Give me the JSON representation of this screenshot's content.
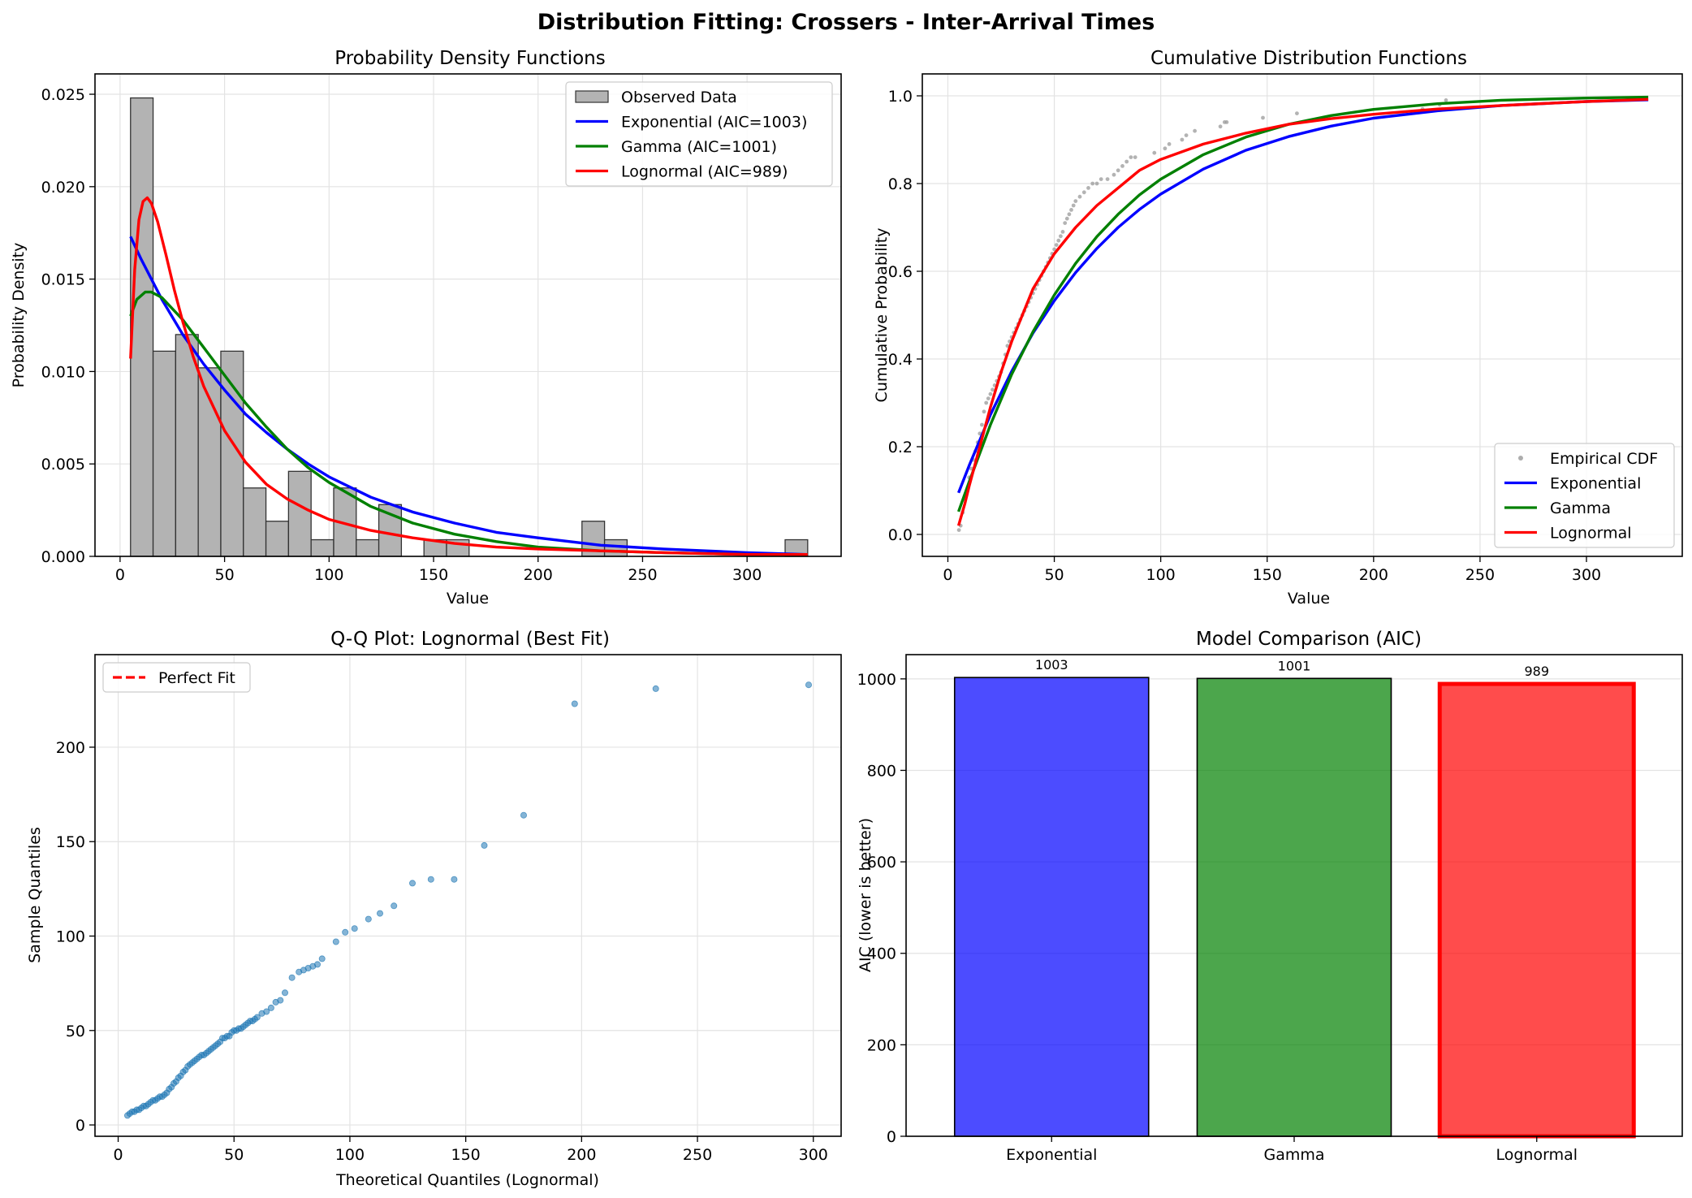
{
  "figure": {
    "title": "Distribution Fitting: Crossers - Inter-Arrival Times"
  },
  "panels": {
    "pdf": {
      "title": "Probability Density Functions",
      "xlabel": "Value",
      "ylabel": "Probability Density",
      "xlim": [
        -12,
        345
      ],
      "ylim": [
        0,
        0.0261
      ],
      "xticks": [
        0,
        50,
        100,
        150,
        200,
        250,
        300
      ],
      "xtick_labels": [
        "0",
        "50",
        "100",
        "150",
        "200",
        "250",
        "300"
      ],
      "yticks": [
        0,
        0.005,
        0.01,
        0.015,
        0.02,
        0.025
      ],
      "ytick_labels": [
        "0.000",
        "0.005",
        "0.010",
        "0.015",
        "0.020",
        "0.025"
      ],
      "legend_position": "top-right"
    },
    "cdf": {
      "title": "Cumulative Distribution Functions",
      "xlabel": "Value",
      "ylabel": "Cumulative Probability",
      "xlim": [
        -12,
        345
      ],
      "ylim": [
        -0.05,
        1.05
      ],
      "xticks": [
        0,
        50,
        100,
        150,
        200,
        250,
        300
      ],
      "xtick_labels": [
        "0",
        "50",
        "100",
        "150",
        "200",
        "250",
        "300"
      ],
      "yticks": [
        0,
        0.2,
        0.4,
        0.6,
        0.8,
        1.0
      ],
      "ytick_labels": [
        "0.0",
        "0.2",
        "0.4",
        "0.6",
        "0.8",
        "1.0"
      ],
      "legend_position": "bottom-right"
    },
    "qq": {
      "title": "Q-Q Plot: Lognormal (Best Fit)",
      "xlabel": "Theoretical Quantiles (Lognormal)",
      "ylabel": "Sample Quantiles",
      "xlim": [
        -10,
        312
      ],
      "ylim": [
        -6,
        249
      ],
      "xticks": [
        0,
        50,
        100,
        150,
        200,
        250,
        300
      ],
      "xtick_labels": [
        "0",
        "50",
        "100",
        "150",
        "200",
        "250",
        "300"
      ],
      "yticks": [
        0,
        50,
        100,
        150,
        200
      ],
      "ytick_labels": [
        "0",
        "50",
        "100",
        "150",
        "200"
      ],
      "legend_position": "top-left"
    },
    "aic": {
      "title": "Model Comparison (AIC)",
      "xlabel": "",
      "ylabel": "AIC (lower is better)",
      "ylim": [
        0,
        1053
      ],
      "yticks": [
        0,
        200,
        400,
        600,
        800,
        1000
      ],
      "ytick_labels": [
        "0",
        "200",
        "400",
        "600",
        "800",
        "1000"
      ]
    }
  },
  "chart_data": [
    {
      "type": "bar",
      "subtype": "histogram-with-fitted-curves",
      "title": "Probability Density Functions",
      "xlabel": "Value",
      "ylabel": "Probability Density",
      "xlim": [
        -12,
        345
      ],
      "ylim": [
        0,
        0.0261
      ],
      "grid": true,
      "legend": "top-right",
      "histogram": {
        "name": "Observed Data",
        "color": "#b3b3b3",
        "bin_edges": [
          5,
          15.8,
          26.6,
          37.4,
          48.2,
          59,
          69.8,
          80.6,
          91.4,
          102.2,
          113,
          123.8,
          134.6,
          145.4,
          156.2,
          167,
          177.8,
          188.6,
          199.4,
          210.2,
          221,
          231.8,
          242.6,
          253.4,
          264.2,
          275,
          285.8,
          296.6,
          307.4,
          318.2,
          329
        ],
        "densities": [
          0.0248,
          0.0111,
          0.012,
          0.0102,
          0.0111,
          0.0037,
          0.0019,
          0.0046,
          0.0009,
          0.0037,
          0.0009,
          0.0028,
          0,
          0.0009,
          0.0009,
          0,
          0,
          0,
          0,
          0,
          0.0019,
          0.0009,
          0,
          0,
          0,
          0,
          0,
          0,
          0,
          0.0009
        ]
      },
      "series": [
        {
          "name": "Exponential (AIC=1003)",
          "color": "#0000ff",
          "x": [
            5,
            10,
            20,
            30,
            40,
            50,
            60,
            70,
            80,
            90,
            100,
            120,
            140,
            160,
            180,
            200,
            230,
            260,
            300,
            329
          ],
          "y": [
            0.0173,
            0.0161,
            0.0139,
            0.012,
            0.0104,
            0.009,
            0.0077,
            0.0067,
            0.0058,
            0.005,
            0.0043,
            0.0032,
            0.0024,
            0.0018,
            0.0013,
            0.001,
            0.0006,
            0.0004,
            0.0002,
            0.0001
          ]
        },
        {
          "name": "Gamma (AIC=1001)",
          "color": "#008000",
          "x": [
            5,
            8,
            12,
            15,
            20,
            30,
            40,
            50,
            60,
            70,
            80,
            90,
            100,
            120,
            140,
            160,
            180,
            200,
            230,
            260,
            300,
            329
          ],
          "y": [
            0.013,
            0.0139,
            0.0143,
            0.0143,
            0.014,
            0.0128,
            0.0113,
            0.0098,
            0.0083,
            0.007,
            0.0058,
            0.0048,
            0.004,
            0.0027,
            0.0018,
            0.0012,
            0.0008,
            0.0005,
            0.0003,
            0.0002,
            0.0001,
            0.0001
          ]
        },
        {
          "name": "Lognormal (AIC=989)",
          "color": "#ff0000",
          "x": [
            5,
            7,
            9,
            11,
            13,
            15,
            18,
            22,
            26,
            30,
            35,
            40,
            50,
            60,
            70,
            80,
            90,
            100,
            120,
            140,
            160,
            180,
            200,
            230,
            260,
            300,
            329
          ],
          "y": [
            0.0107,
            0.0155,
            0.0182,
            0.0192,
            0.0194,
            0.0191,
            0.0181,
            0.0163,
            0.0144,
            0.0127,
            0.0108,
            0.0092,
            0.0068,
            0.0051,
            0.0039,
            0.0031,
            0.0025,
            0.002,
            0.0014,
            0.001,
            0.0007,
            0.0005,
            0.0004,
            0.0003,
            0.0002,
            0.0001,
            0.0001
          ]
        }
      ]
    },
    {
      "type": "line",
      "title": "Cumulative Distribution Functions",
      "xlabel": "Value",
      "ylabel": "Cumulative Probability",
      "xlim": [
        -12,
        345
      ],
      "ylim": [
        -0.05,
        1.05
      ],
      "grid": true,
      "legend": "bottom-right",
      "scatter": {
        "name": "Empirical CDF",
        "color": "#999999",
        "x": [
          5.2,
          6,
          7,
          8,
          9,
          10,
          11,
          12,
          13,
          14,
          15,
          16,
          17,
          18,
          19,
          20,
          21,
          22,
          23,
          24,
          25,
          26,
          27,
          28,
          29,
          30,
          31,
          32,
          33,
          34,
          35,
          36,
          37,
          38,
          39,
          40,
          41,
          42,
          43,
          44,
          45,
          46,
          47,
          48,
          49,
          50,
          51,
          52,
          53,
          54,
          55,
          56,
          57,
          58,
          59,
          60,
          62,
          64,
          66,
          68,
          70,
          72,
          75,
          78,
          80,
          82,
          84,
          86,
          88,
          97,
          102,
          104,
          110,
          112,
          116,
          128,
          130,
          131,
          148,
          164,
          223,
          231,
          234
        ],
        "y": [
          0.01,
          0.02,
          0.05,
          0.08,
          0.1,
          0.13,
          0.15,
          0.17,
          0.19,
          0.21,
          0.23,
          0.25,
          0.28,
          0.3,
          0.31,
          0.32,
          0.33,
          0.34,
          0.35,
          0.36,
          0.37,
          0.39,
          0.41,
          0.43,
          0.44,
          0.45,
          0.46,
          0.47,
          0.48,
          0.49,
          0.5,
          0.51,
          0.52,
          0.53,
          0.54,
          0.55,
          0.56,
          0.57,
          0.58,
          0.59,
          0.6,
          0.61,
          0.62,
          0.63,
          0.64,
          0.65,
          0.66,
          0.67,
          0.68,
          0.69,
          0.71,
          0.72,
          0.73,
          0.74,
          0.75,
          0.76,
          0.77,
          0.78,
          0.79,
          0.8,
          0.8,
          0.81,
          0.81,
          0.82,
          0.83,
          0.84,
          0.85,
          0.86,
          0.86,
          0.87,
          0.88,
          0.89,
          0.9,
          0.91,
          0.92,
          0.93,
          0.94,
          0.94,
          0.95,
          0.96,
          0.97,
          0.98,
          0.99
        ]
      },
      "series": [
        {
          "name": "Exponential",
          "color": "#0000ff",
          "x": [
            5,
            10,
            20,
            30,
            40,
            50,
            60,
            70,
            80,
            90,
            100,
            120,
            140,
            160,
            180,
            200,
            230,
            260,
            300,
            329
          ],
          "y": [
            0.095,
            0.157,
            0.273,
            0.372,
            0.459,
            0.533,
            0.597,
            0.652,
            0.7,
            0.741,
            0.776,
            0.833,
            0.876,
            0.907,
            0.931,
            0.949,
            0.966,
            0.978,
            0.987,
            0.991
          ]
        },
        {
          "name": "Gamma",
          "color": "#008000",
          "x": [
            5,
            10,
            20,
            30,
            40,
            50,
            60,
            70,
            80,
            90,
            100,
            120,
            140,
            160,
            180,
            200,
            230,
            260,
            300,
            329
          ],
          "y": [
            0.052,
            0.12,
            0.25,
            0.365,
            0.462,
            0.546,
            0.618,
            0.679,
            0.73,
            0.774,
            0.81,
            0.866,
            0.906,
            0.935,
            0.955,
            0.969,
            0.982,
            0.99,
            0.995,
            0.997
          ]
        },
        {
          "name": "Lognormal",
          "color": "#ff0000",
          "x": [
            5,
            8,
            10,
            15,
            20,
            25,
            30,
            40,
            50,
            60,
            70,
            80,
            90,
            100,
            120,
            140,
            160,
            180,
            200,
            230,
            260,
            300,
            329
          ],
          "y": [
            0.02,
            0.07,
            0.11,
            0.2,
            0.29,
            0.37,
            0.44,
            0.56,
            0.64,
            0.7,
            0.75,
            0.79,
            0.83,
            0.855,
            0.89,
            0.915,
            0.935,
            0.948,
            0.958,
            0.97,
            0.978,
            0.987,
            0.992
          ]
        }
      ]
    },
    {
      "type": "scatter",
      "title": "Q-Q Plot: Lognormal (Best Fit)",
      "xlabel": "Theoretical Quantiles (Lognormal)",
      "ylabel": "Sample Quantiles",
      "xlim": [
        -10,
        312
      ],
      "ylim": [
        -6,
        249
      ],
      "grid": true,
      "legend": "top-left",
      "reference_line": {
        "name": "Perfect Fit",
        "color": "#ff0000",
        "style": "dashed"
      },
      "points": {
        "color": "#1f77b4",
        "x": [
          4,
          5,
          6,
          7,
          8,
          9,
          10,
          11,
          12,
          13,
          14,
          15,
          16,
          17,
          18,
          19,
          20,
          21,
          22,
          23,
          24,
          25,
          26,
          27,
          28,
          29,
          30,
          31,
          32,
          33,
          34,
          35,
          36,
          37,
          38,
          39,
          40,
          41,
          42,
          43,
          44,
          45,
          46,
          47,
          48,
          49,
          50,
          51,
          52,
          53,
          54,
          55,
          56,
          57,
          58,
          59,
          60,
          62,
          64,
          66,
          68,
          70,
          72,
          75,
          78,
          80,
          82,
          84,
          86,
          88,
          94,
          98,
          102,
          108,
          113,
          119,
          127,
          135,
          145,
          158,
          175,
          197,
          232,
          298
        ],
        "y": [
          5,
          6,
          7,
          7,
          8,
          8,
          9,
          10,
          10,
          11,
          12,
          13,
          13,
          14,
          15,
          15,
          16,
          17,
          19,
          20,
          22,
          23,
          25,
          26,
          28,
          29,
          31,
          32,
          33,
          34,
          35,
          36,
          37,
          37,
          38,
          39,
          40,
          41,
          42,
          43,
          44,
          46,
          46,
          47,
          47,
          49,
          50,
          50,
          51,
          51,
          52,
          53,
          54,
          55,
          55,
          56,
          57,
          59,
          60,
          62,
          65,
          66,
          70,
          78,
          81,
          82,
          83,
          84,
          85,
          88,
          97,
          102,
          104,
          109,
          112,
          116,
          128,
          130,
          130,
          148,
          164,
          223,
          231,
          233
        ]
      }
    },
    {
      "type": "bar",
      "title": "Model Comparison (AIC)",
      "xlabel": "",
      "ylabel": "AIC (lower is better)",
      "ylim": [
        0,
        1053
      ],
      "grid": true,
      "categories": [
        "Exponential",
        "Gamma",
        "Lognormal"
      ],
      "values": [
        1003,
        1001,
        989
      ],
      "value_labels": [
        "1003",
        "1001",
        "989"
      ],
      "colors": [
        "#0000ff",
        "#008000",
        "#ff0000"
      ],
      "highlighted": "Lognormal"
    }
  ]
}
